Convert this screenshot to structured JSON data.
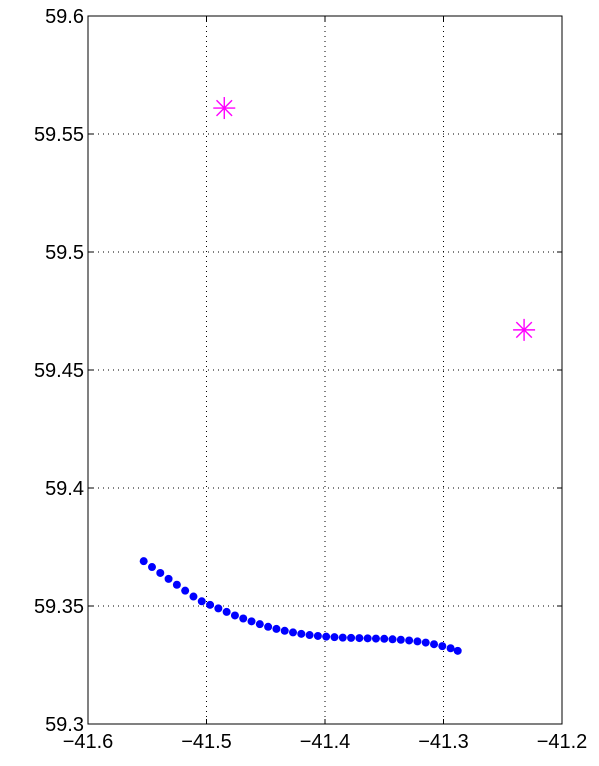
{
  "chart_data": {
    "type": "scatter",
    "title": "",
    "xlabel": "",
    "ylabel": "",
    "xlim": [
      -41.6,
      -41.2
    ],
    "ylim": [
      59.3,
      59.6
    ],
    "grid": true,
    "x_ticks": [
      -41.6,
      -41.5,
      -41.4,
      -41.3,
      -41.2
    ],
    "x_tick_labels": [
      "−41.6",
      "−41.5",
      "−41.4",
      "−41.3",
      "−41.2"
    ],
    "y_ticks": [
      59.3,
      59.35,
      59.4,
      59.45,
      59.5,
      59.55,
      59.6
    ],
    "y_tick_labels": [
      "59.3",
      "59.35",
      "59.4",
      "59.45",
      "59.5",
      "59.55",
      "59.6"
    ],
    "series": [
      {
        "marker": "dot",
        "color": "#0000ff",
        "points": [
          [
            -41.553,
            59.369
          ],
          [
            -41.546,
            59.3665
          ],
          [
            -41.539,
            59.364
          ],
          [
            -41.532,
            59.3615
          ],
          [
            -41.525,
            59.359
          ],
          [
            -41.518,
            59.3565
          ],
          [
            -41.511,
            59.354
          ],
          [
            -41.504,
            59.352
          ],
          [
            -41.497,
            59.3505
          ],
          [
            -41.49,
            59.349
          ],
          [
            -41.483,
            59.3475
          ],
          [
            -41.476,
            59.346
          ],
          [
            -41.469,
            59.3447
          ],
          [
            -41.462,
            59.3435
          ],
          [
            -41.455,
            59.3423
          ],
          [
            -41.448,
            59.3412
          ],
          [
            -41.441,
            59.3403
          ],
          [
            -41.434,
            59.3395
          ],
          [
            -41.427,
            59.3388
          ],
          [
            -41.42,
            59.3382
          ],
          [
            -41.413,
            59.3377
          ],
          [
            -41.406,
            59.3373
          ],
          [
            -41.399,
            59.337
          ],
          [
            -41.392,
            59.3368
          ],
          [
            -41.385,
            59.3366
          ],
          [
            -41.378,
            59.3365
          ],
          [
            -41.371,
            59.3364
          ],
          [
            -41.364,
            59.3363
          ],
          [
            -41.357,
            59.3362
          ],
          [
            -41.35,
            59.3361
          ],
          [
            -41.343,
            59.3359
          ],
          [
            -41.336,
            59.3357
          ],
          [
            -41.329,
            59.3354
          ],
          [
            -41.322,
            59.335
          ],
          [
            -41.315,
            59.3345
          ],
          [
            -41.308,
            59.3338
          ],
          [
            -41.301,
            59.333
          ],
          [
            -41.294,
            59.3321
          ],
          [
            -41.288,
            59.331
          ]
        ]
      },
      {
        "marker": "asterisk",
        "color": "#ff00ff",
        "points": [
          [
            -41.485,
            59.561
          ],
          [
            -41.232,
            59.467
          ]
        ]
      }
    ]
  }
}
